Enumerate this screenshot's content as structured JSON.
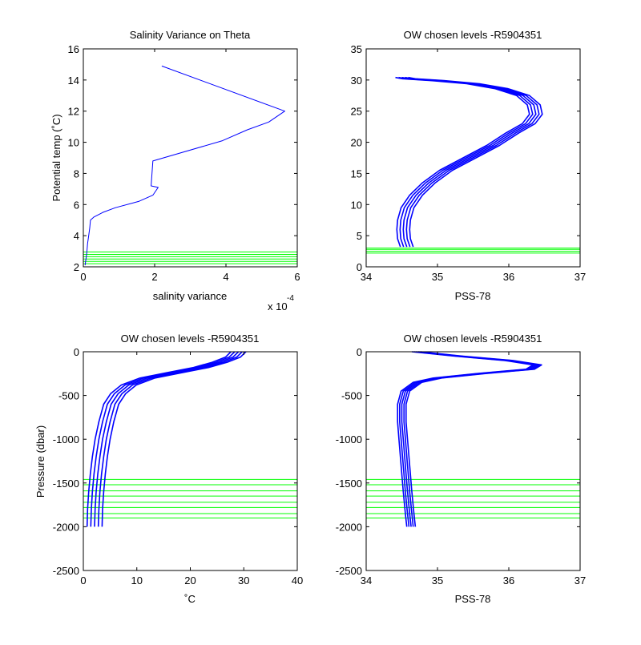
{
  "chart_data": [
    {
      "type": "line",
      "title": "Salinity Variance on Theta",
      "xlabel": "salinity variance",
      "ylabel": "Potential temp (˚C)",
      "xlim": [
        0,
        6
      ],
      "ylim": [
        2,
        16
      ],
      "xticks": [
        "0",
        "2",
        "4",
        "6"
      ],
      "yticks": [
        "2",
        "4",
        "6",
        "8",
        "10",
        "12",
        "14",
        "16"
      ],
      "x_exponent": {
        "base": "x 10",
        "power": "-4"
      },
      "grid": false,
      "series": [
        {
          "color": "#0000ff",
          "x": [
            2.2,
            5.65,
            5.2,
            4.6,
            3.9,
            1.95,
            1.9,
            2.1,
            1.95,
            1.55,
            0.9,
            0.55,
            0.3,
            0.2,
            0.18,
            0.15,
            0.12,
            0.1,
            0.08,
            0.06,
            0.05
          ],
          "y": [
            14.9,
            12.0,
            11.3,
            10.8,
            10.1,
            8.8,
            7.2,
            7.1,
            6.6,
            6.2,
            5.8,
            5.5,
            5.2,
            5.0,
            4.5,
            4.0,
            3.5,
            3.0,
            2.6,
            2.3,
            2.1
          ]
        }
      ],
      "hlines": {
        "color": "#00ff00",
        "values": [
          2.2,
          2.35,
          2.5,
          2.65,
          2.8,
          2.95
        ]
      }
    },
    {
      "type": "line",
      "title": "OW chosen levels -R5904351",
      "xlabel": "PSS-78",
      "ylabel": "",
      "xlim": [
        34,
        37
      ],
      "ylim": [
        0,
        35
      ],
      "xticks": [
        "34",
        "35",
        "36",
        "37"
      ],
      "yticks": [
        "0",
        "5",
        "10",
        "15",
        "20",
        "25",
        "30",
        "35"
      ],
      "grid": false,
      "series": [
        {
          "color": "#0000ff",
          "band": 0.09,
          "x": [
            34.57,
            34.53,
            34.52,
            34.53,
            34.58,
            34.7,
            34.88,
            35.12,
            35.45,
            35.78,
            36.05,
            36.28,
            36.38,
            36.35,
            36.2,
            35.9,
            35.5,
            35.0,
            34.6,
            34.5
          ],
          "y": [
            3.2,
            4.5,
            6.0,
            7.5,
            9.5,
            11.5,
            13.5,
            15.5,
            17.5,
            19.5,
            21.5,
            23.0,
            24.5,
            26.0,
            27.5,
            28.6,
            29.4,
            29.9,
            30.2,
            30.4
          ]
        }
      ],
      "hlines": {
        "color": "#00ff00",
        "values": [
          2.2,
          2.5,
          2.8,
          3.0
        ]
      }
    },
    {
      "type": "line",
      "title": "OW chosen levels -R5904351",
      "xlabel": "˚C",
      "ylabel": "Pressure (dbar)",
      "xlim": [
        0,
        40
      ],
      "ylim": [
        -2500,
        0
      ],
      "xticks": [
        "0",
        "10",
        "20",
        "30",
        "40"
      ],
      "yticks": [
        "-2500",
        "-2000",
        "-1500",
        "-1000",
        "-500",
        "0"
      ],
      "grid": false,
      "series": [
        {
          "color": "#0000ff",
          "band": 1.4,
          "x": [
            29.0,
            28.0,
            25.5,
            22.0,
            17.0,
            12.0,
            8.5,
            6.5,
            5.2,
            4.3,
            3.6,
            3.1,
            2.7,
            2.4,
            2.2,
            2.1
          ],
          "y": [
            0,
            -60,
            -120,
            -180,
            -240,
            -300,
            -380,
            -480,
            -600,
            -800,
            -1000,
            -1200,
            -1400,
            -1600,
            -1800,
            -2000
          ]
        }
      ],
      "hlines": {
        "color": "#00ff00",
        "values": [
          -1460,
          -1520,
          -1590,
          -1650,
          -1720,
          -1780,
          -1850,
          -1900
        ]
      }
    },
    {
      "type": "line",
      "title": "OW chosen levels -R5904351",
      "xlabel": "PSS-78",
      "ylabel": "",
      "xlim": [
        34,
        37
      ],
      "ylim": [
        -2500,
        0
      ],
      "xticks": [
        "34",
        "35",
        "36",
        "37"
      ],
      "yticks": [
        "-2500",
        "-2000",
        "-1500",
        "-1000",
        "-500",
        "0"
      ],
      "grid": false,
      "series": [
        {
          "color": "#0000ff",
          "band": 0.06,
          "x": [
            34.7,
            35.3,
            36.0,
            36.4,
            36.3,
            35.6,
            35.0,
            34.72,
            34.55,
            34.5,
            34.5,
            34.52,
            34.55,
            34.58,
            34.61,
            34.63
          ],
          "y": [
            0,
            -50,
            -100,
            -150,
            -200,
            -250,
            -300,
            -350,
            -450,
            -600,
            -800,
            -1000,
            -1300,
            -1600,
            -1850,
            -2000
          ]
        }
      ],
      "hlines": {
        "color": "#00ff00",
        "values": [
          -1460,
          -1520,
          -1590,
          -1650,
          -1720,
          -1780,
          -1850,
          -1900
        ]
      }
    }
  ]
}
